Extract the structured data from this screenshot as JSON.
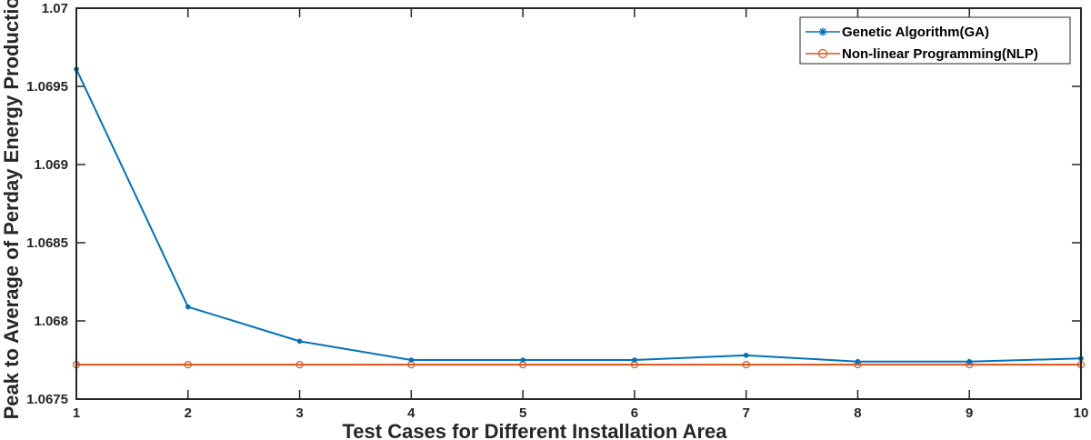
{
  "chart_data": {
    "type": "line",
    "title": "",
    "xlabel": "Test Cases for Different Installation Area",
    "ylabel": "Peak to Average of Perday Energy Production",
    "x": [
      1,
      2,
      3,
      4,
      5,
      6,
      7,
      8,
      9,
      10
    ],
    "xlim": [
      1,
      10
    ],
    "ylim": [
      1.0675,
      1.07
    ],
    "xticks": [
      "1",
      "2",
      "3",
      "4",
      "5",
      "6",
      "7",
      "8",
      "9",
      "10"
    ],
    "yticks": [
      "1.0675",
      "1.068",
      "1.0685",
      "1.069",
      "1.0695",
      "1.07"
    ],
    "ytick_values": [
      1.0675,
      1.068,
      1.0685,
      1.069,
      1.0695,
      1.07
    ],
    "grid": false,
    "legend_position": "top-right",
    "series": [
      {
        "name": "Genetic Algorithm(GA)",
        "color": "#0072BD",
        "marker": "asterisk",
        "values": [
          1.06961,
          1.06809,
          1.06787,
          1.06775,
          1.06775,
          1.06775,
          1.06778,
          1.06774,
          1.06774,
          1.06776
        ]
      },
      {
        "name": "Non-linear Programming(NLP)",
        "color": "#D95319",
        "marker": "circle",
        "values": [
          1.06772,
          1.06772,
          1.06772,
          1.06772,
          1.06772,
          1.06772,
          1.06772,
          1.06772,
          1.06772,
          1.06772
        ]
      }
    ]
  }
}
